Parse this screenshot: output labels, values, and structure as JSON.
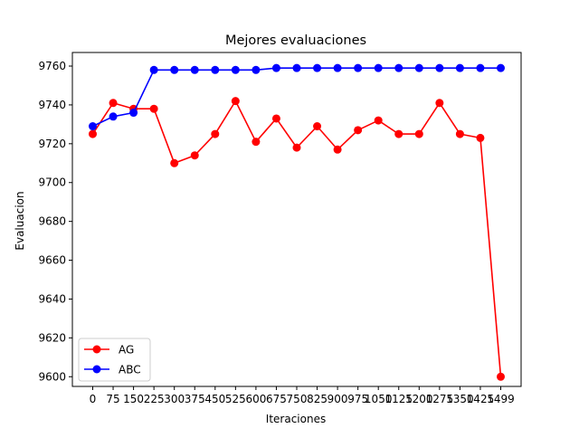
{
  "chart_data": {
    "type": "line",
    "title": "Mejores evaluaciones",
    "xlabel": "Iteraciones",
    "ylabel": "Evaluacion",
    "categories": [
      "0",
      "75",
      "150",
      "225",
      "300",
      "375",
      "450",
      "525",
      "600",
      "675",
      "750",
      "825",
      "900",
      "975",
      "1050",
      "1125",
      "1200",
      "1275",
      "1350",
      "1425",
      "1499"
    ],
    "ylim": [
      9595,
      9767
    ],
    "yticks": [
      9600,
      9620,
      9640,
      9660,
      9680,
      9700,
      9720,
      9740,
      9760
    ],
    "grid": false,
    "legend_position": "lower-left",
    "series": [
      {
        "name": "AG",
        "color": "#ff0000",
        "values": [
          9725,
          9741,
          9738,
          9738,
          9710,
          9714,
          9725,
          9742,
          9721,
          9733,
          9718,
          9729,
          9717,
          9727,
          9732,
          9725,
          9725,
          9741,
          9725,
          9723,
          9600
        ]
      },
      {
        "name": "ABC",
        "color": "#0000ff",
        "values": [
          9729,
          9734,
          9736,
          9758,
          9758,
          9758,
          9758,
          9758,
          9758,
          9759,
          9759,
          9759,
          9759,
          9759,
          9759,
          9759,
          9759,
          9759,
          9759,
          9759,
          9759
        ]
      }
    ]
  }
}
